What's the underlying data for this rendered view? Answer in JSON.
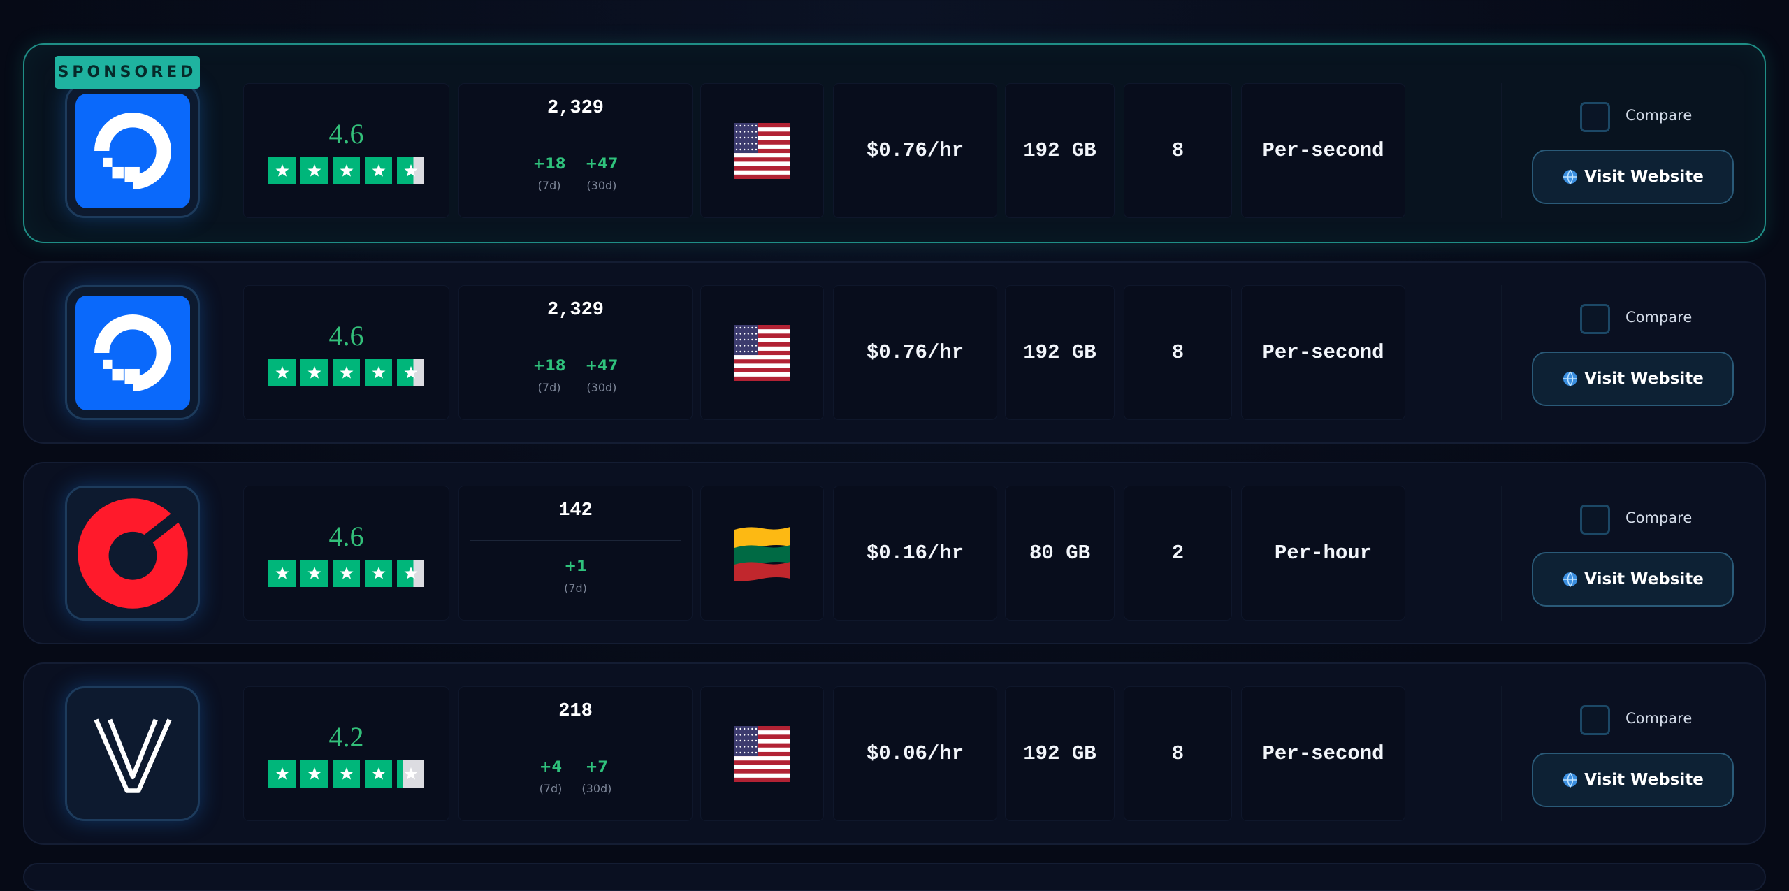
{
  "rows": [
    {
      "badge": "SPONSORED",
      "rating": 4.6,
      "reviews": "2,329",
      "deltas": [
        {
          "change": "+18",
          "period": "(7d)"
        },
        {
          "change": "+47",
          "period": "(30d)"
        }
      ],
      "price": "$0.76/hr",
      "storage": "192 GB",
      "cores": 8,
      "billing": "Per-second",
      "compare": "Compare",
      "action": "Visit Website"
    },
    {
      "rating": 4.6,
      "reviews": "2,329",
      "deltas": [
        {
          "change": "+18",
          "period": "(7d)"
        },
        {
          "change": "+47",
          "period": "(30d)"
        }
      ],
      "price": "$0.76/hr",
      "storage": "192 GB",
      "cores": 8,
      "billing": "Per-second",
      "compare": "Compare",
      "action": "Visit Website"
    },
    {
      "rating": 4.6,
      "reviews": "142",
      "deltas": [
        {
          "change": "+1",
          "period": "(7d)"
        }
      ],
      "price": "$0.16/hr",
      "storage": "80 GB",
      "cores": 2,
      "billing": "Per-hour",
      "compare": "Compare",
      "action": "Visit Website"
    },
    {
      "rating": 4.2,
      "reviews": "218",
      "deltas": [
        {
          "change": "+4",
          "period": "(7d)"
        },
        {
          "change": "+7",
          "period": "(30d)"
        }
      ],
      "price": "$0.06/hr",
      "storage": "192 GB",
      "cores": 8,
      "billing": "Per-second",
      "compare": "Compare",
      "action": "Visit Website"
    }
  ]
}
